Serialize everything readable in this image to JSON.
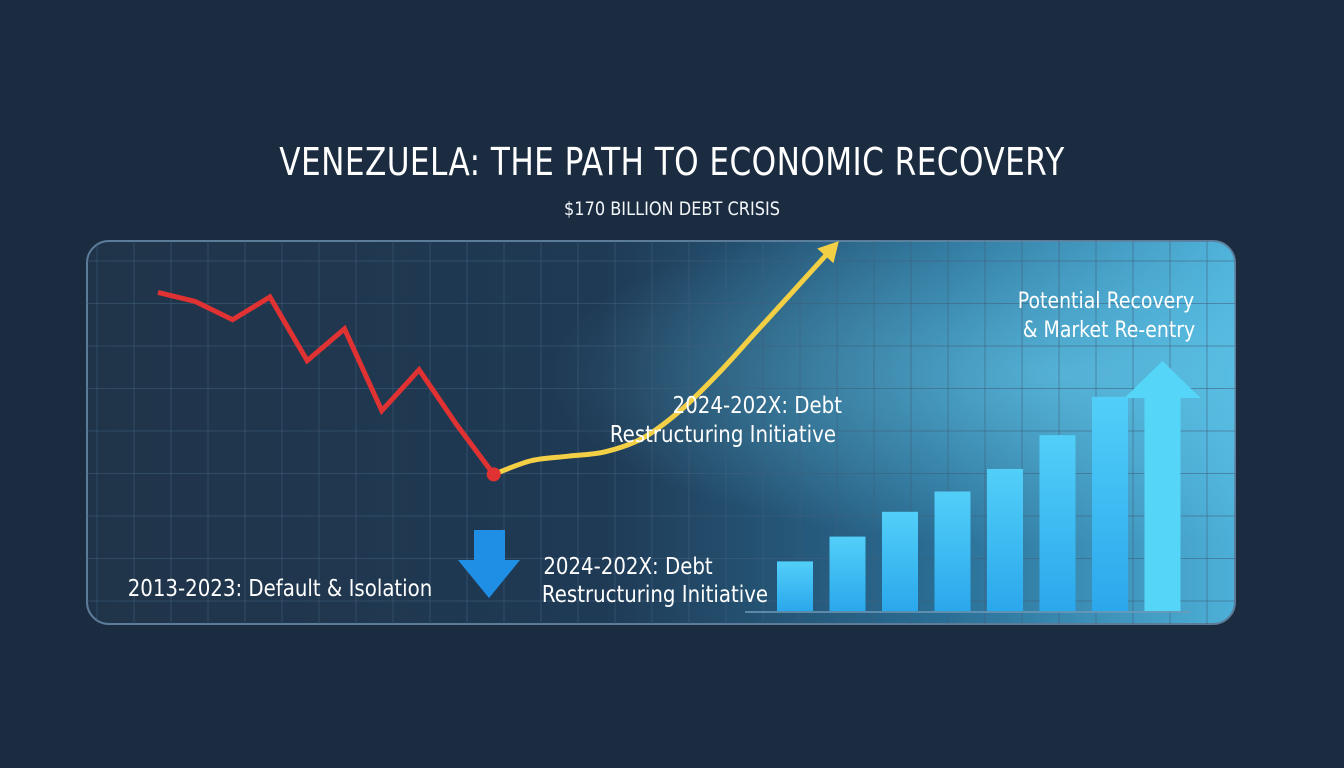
{
  "title": "VENEZUELA: THE PATH TO ECONOMIC RECOVERY",
  "subtitle": "$170 BILLION DEBT CRISIS",
  "annotations": {
    "decline": "2013-2023: Default & Isolation",
    "restructuring_upper": [
      "2024-202X: Debt",
      "Restructuring Initiative"
    ],
    "restructuring_lower": [
      "2024-202X: Debt",
      "Restructuring Initiative"
    ],
    "recovery": [
      "Potential Recovery",
      "& Market Re-entry"
    ]
  },
  "colors": {
    "background": "#1b2c40",
    "decline_line": "#e03232",
    "recovery_line": "#f2cf45",
    "down_arrow": "#1f8fe6",
    "bars": "#3cc0f5",
    "up_arrow": "#55d6f8"
  },
  "chart_data": [
    {
      "type": "line",
      "name": "",
      "x": [
        0,
        1,
        2,
        3,
        4,
        5,
        6,
        7,
        8,
        9
      ],
      "values": [
        72,
        70,
        66,
        71,
        57,
        64,
        46,
        55,
        43,
        32
      ],
      "ylim": [
        0,
        100
      ]
    },
    {
      "type": "line",
      "name": "",
      "x": [
        9,
        10,
        11,
        12,
        13,
        14,
        15,
        16,
        17,
        18
      ],
      "values": [
        32,
        35,
        36,
        37,
        40,
        46,
        54,
        63,
        72,
        81
      ],
      "ylim": [
        0,
        100
      ]
    },
    {
      "type": "bar",
      "categories": [
        "",
        "",
        "",
        "",
        "",
        "",
        "",
        ""
      ],
      "values": [
        22,
        33,
        44,
        53,
        63,
        78,
        95,
        110
      ],
      "ylim": [
        0,
        130
      ]
    }
  ]
}
